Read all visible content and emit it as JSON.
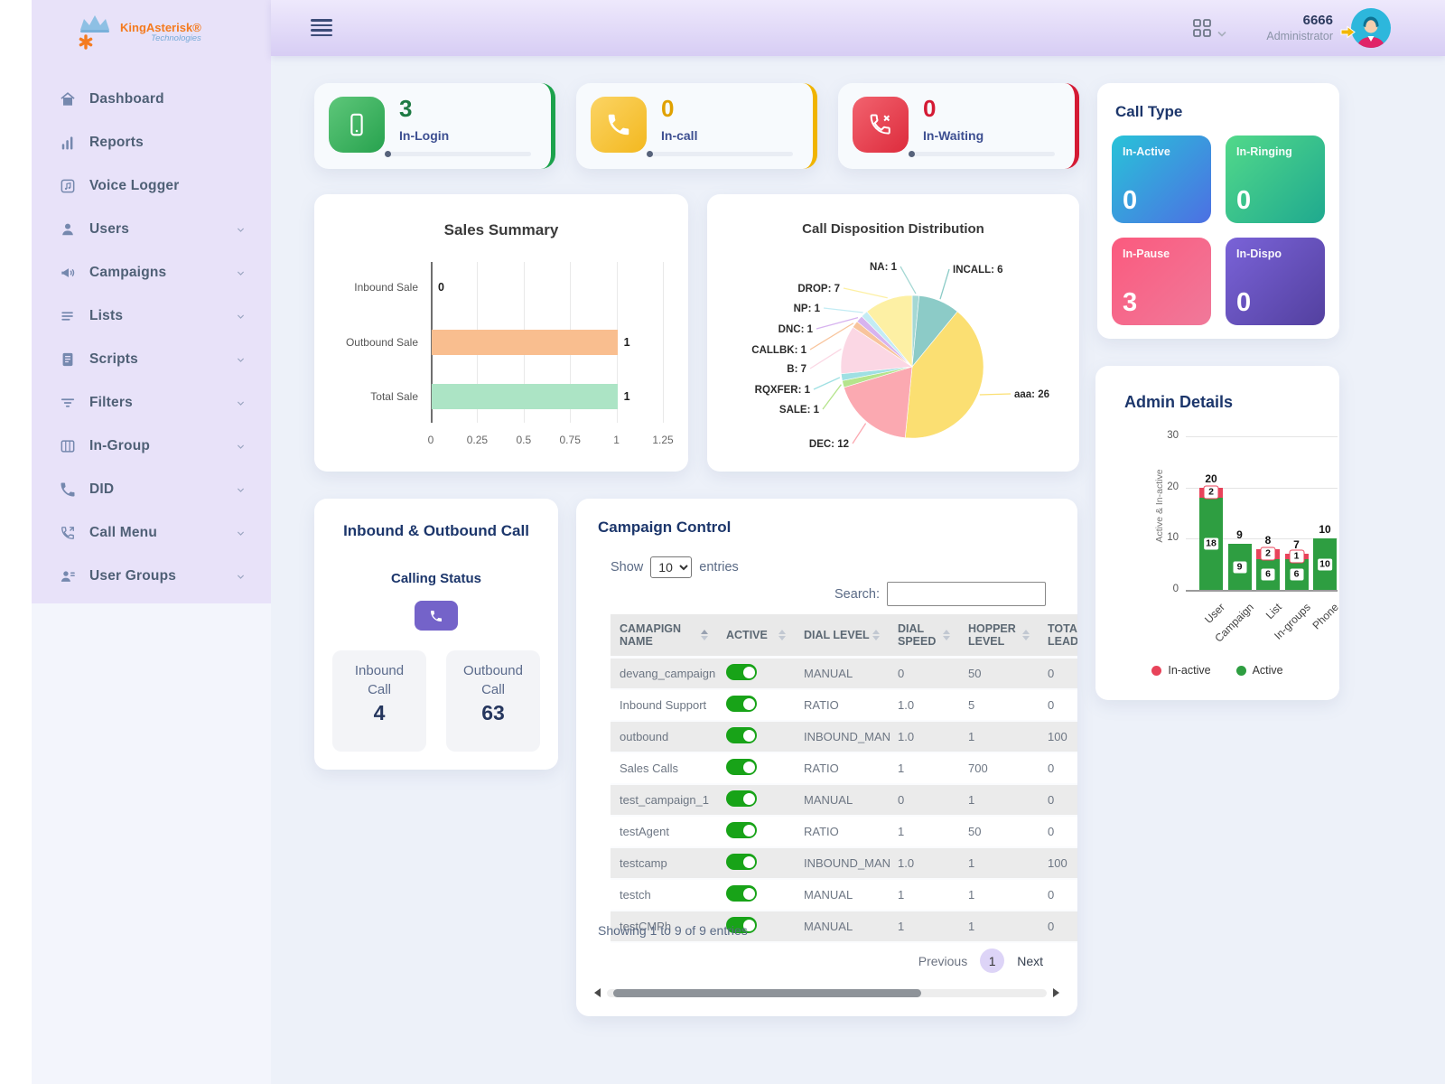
{
  "brand": {
    "name": "KingAsterisk®",
    "tagline": "Technologies"
  },
  "topbar": {
    "user_id": "6666",
    "user_role": "Administrator"
  },
  "sidebar": {
    "items": [
      {
        "label": "Dashboard",
        "icon": "home",
        "expandable": false
      },
      {
        "label": "Reports",
        "icon": "bar-chart",
        "expandable": false
      },
      {
        "label": "Voice Logger",
        "icon": "music-note",
        "expandable": false
      },
      {
        "label": "Users",
        "icon": "user",
        "expandable": true
      },
      {
        "label": "Campaigns",
        "icon": "megaphone",
        "expandable": true
      },
      {
        "label": "Lists",
        "icon": "list",
        "expandable": true
      },
      {
        "label": "Scripts",
        "icon": "document",
        "expandable": true
      },
      {
        "label": "Filters",
        "icon": "filter",
        "expandable": true
      },
      {
        "label": "In-Group",
        "icon": "columns",
        "expandable": true
      },
      {
        "label": "DID",
        "icon": "phone",
        "expandable": true
      },
      {
        "label": "Call Menu",
        "icon": "phone-out",
        "expandable": true
      },
      {
        "label": "User Groups",
        "icon": "user-group",
        "expandable": true
      }
    ]
  },
  "stat_cards": [
    {
      "value": "3",
      "label": "In-Login",
      "icon": "mobile",
      "accent": "#1ca24c",
      "icon_g1": "#5ec77a",
      "icon_g2": "#27a24e",
      "value_color": "#1d7a43"
    },
    {
      "value": "0",
      "label": "In-call",
      "icon": "phone",
      "accent": "#f0b400",
      "icon_g1": "#fbd464",
      "icon_g2": "#f3b81f",
      "value_color": "#e0a100"
    },
    {
      "value": "0",
      "label": "In-Waiting",
      "icon": "phone-x",
      "accent": "#d41a34",
      "icon_g1": "#f2636f",
      "icon_g2": "#dd2b3c",
      "value_color": "#d41a34"
    }
  ],
  "call_type": {
    "title": "Call Type",
    "tiles": [
      {
        "label": "In-Active",
        "value": "0",
        "g1": "#28c3d8",
        "g2": "#4d6fe3"
      },
      {
        "label": "In-Ringing",
        "value": "0",
        "g1": "#52d98a",
        "g2": "#1fa98f"
      },
      {
        "label": "In-Pause",
        "value": "3",
        "g1": "#fb5a7e",
        "g2": "#f0799a"
      },
      {
        "label": "In-Dispo",
        "value": "0",
        "g1": "#7a63d8",
        "g2": "#53409f"
      }
    ]
  },
  "calling_card": {
    "title": "Inbound & Outbound Call",
    "subtitle": "Calling Status",
    "items": [
      {
        "label": "Inbound Call",
        "value": "4"
      },
      {
        "label": "Outbound Call",
        "value": "63"
      }
    ]
  },
  "campaign_control": {
    "title": "Campaign Control",
    "show_prefix": "Show",
    "show_suffix": "entries",
    "page_size": "10",
    "search_label": "Search:",
    "columns": [
      "CAMAPIGN NAME",
      "ACTIVE",
      "DIAL LEVEL",
      "DIAL SPEED",
      "HOPPER LEVEL",
      "TOTAL LEADS"
    ],
    "rows": [
      {
        "name": "devang_campaign",
        "active": true,
        "dial_level": "MANUAL",
        "dial_speed": "0",
        "hopper_level": "50",
        "total_leads": "0"
      },
      {
        "name": "Inbound Support",
        "active": true,
        "dial_level": "RATIO",
        "dial_speed": "1.0",
        "hopper_level": "5",
        "total_leads": "0"
      },
      {
        "name": "outbound",
        "active": true,
        "dial_level": "INBOUND_MAN",
        "dial_speed": "1.0",
        "hopper_level": "1",
        "total_leads": "100"
      },
      {
        "name": "Sales Calls",
        "active": true,
        "dial_level": "RATIO",
        "dial_speed": "1",
        "hopper_level": "700",
        "total_leads": "0"
      },
      {
        "name": "test_campaign_1",
        "active": true,
        "dial_level": "MANUAL",
        "dial_speed": "0",
        "hopper_level": "1",
        "total_leads": "0"
      },
      {
        "name": "testAgent",
        "active": true,
        "dial_level": "RATIO",
        "dial_speed": "1",
        "hopper_level": "50",
        "total_leads": "0"
      },
      {
        "name": "testcamp",
        "active": true,
        "dial_level": "INBOUND_MAN",
        "dial_speed": "1.0",
        "hopper_level": "1",
        "total_leads": "100"
      },
      {
        "name": "testch",
        "active": true,
        "dial_level": "MANUAL",
        "dial_speed": "1",
        "hopper_level": "1",
        "total_leads": "0"
      },
      {
        "name": "testCMPh",
        "active": true,
        "dial_level": "MANUAL",
        "dial_speed": "1",
        "hopper_level": "1",
        "total_leads": "0"
      }
    ],
    "footer": "Showing 1 to 9 of 9 entries",
    "pagination": {
      "previous": "Previous",
      "current": "1",
      "next": "Next"
    }
  },
  "chart_data": [
    {
      "id": "sales",
      "type": "bar",
      "orientation": "horizontal",
      "title": "Sales Summary",
      "categories": [
        "Inbound Sale",
        "Outbound Sale",
        "Total Sale"
      ],
      "values": [
        0,
        1,
        1
      ],
      "colors": [
        "#cccccc",
        "#f9be8f",
        "#ace4c5"
      ],
      "xlim": [
        0,
        1.25
      ],
      "xticks": [
        0,
        0.25,
        0.5,
        0.75,
        1,
        1.25
      ],
      "data_labels": true,
      "grid": true
    },
    {
      "id": "disposition",
      "type": "pie",
      "title": "Call Disposition Distribution",
      "labels": [
        "NA",
        "INCALL",
        "aaa",
        "DEC",
        "SALE",
        "RQXFER",
        "B",
        "CALLBK",
        "DNC",
        "NP",
        "DROP"
      ],
      "values": [
        1,
        6,
        26,
        12,
        1,
        1,
        7,
        1,
        1,
        1,
        7
      ],
      "colors": [
        "#a5d8d4",
        "#8ccbc7",
        "#fbdf72",
        "#fba9b1",
        "#b5e48c",
        "#9fe0e3",
        "#fbd7e4",
        "#f8c49c",
        "#d7b3ef",
        "#c3ecf4",
        "#fdf0a4"
      ],
      "label_format": "name: value"
    },
    {
      "id": "admin",
      "type": "stacked-bar",
      "title": "Admin Details",
      "ylabel": "Active & In-active",
      "categories": [
        "User",
        "Campaign",
        "List",
        "In-groups",
        "Phone"
      ],
      "series": [
        {
          "name": "Active",
          "color": "#2e9e41",
          "values": [
            18,
            9,
            6,
            6,
            10
          ]
        },
        {
          "name": "In-active",
          "color": "#e8435a",
          "values": [
            2,
            0,
            2,
            1,
            0
          ]
        }
      ],
      "totals": [
        20,
        9,
        8,
        7,
        10
      ],
      "ylim": [
        0,
        30
      ],
      "yticks": [
        0,
        10,
        20,
        30
      ],
      "legend": [
        "In-active",
        "Active"
      ],
      "legend_position": "bottom",
      "grid": true
    }
  ]
}
